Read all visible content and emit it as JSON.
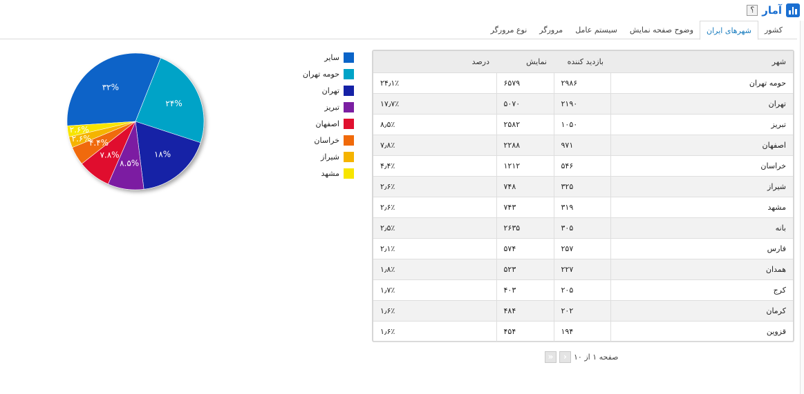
{
  "header": {
    "title": "آمار",
    "help_label": "؟",
    "icon": "bar-chart-icon"
  },
  "tabs": [
    {
      "label": "کشور",
      "active": false
    },
    {
      "label": "شهرهای ایران",
      "active": true
    },
    {
      "label": "وضوح صفحه نمایش",
      "active": false
    },
    {
      "label": "سیستم عامل",
      "active": false
    },
    {
      "label": "مرورگر",
      "active": false
    },
    {
      "label": "نوع مرورگر",
      "active": false
    }
  ],
  "table": {
    "headers": {
      "city": "شهر",
      "visitors": "بازدید کننده",
      "views": "نمایش",
      "percent": "درصد"
    },
    "rows": [
      {
        "city": "حومه تهران",
        "visitors": "۲۹۸۶",
        "views": "۶۵۷۹",
        "percent": "۲۴٫۱٪"
      },
      {
        "city": "تهران",
        "visitors": "۲۱۹۰",
        "views": "۵۰۷۰",
        "percent": "۱۷٫۷٪"
      },
      {
        "city": "تبریز",
        "visitors": "۱۰۵۰",
        "views": "۲۵۸۲",
        "percent": "۸٫۵٪"
      },
      {
        "city": "اصفهان",
        "visitors": "۹۷۱",
        "views": "۲۲۸۸",
        "percent": "۷٫۸٪"
      },
      {
        "city": "خراسان",
        "visitors": "۵۴۶",
        "views": "۱۲۱۲",
        "percent": "۴٫۴٪"
      },
      {
        "city": "شیراز",
        "visitors": "۳۲۵",
        "views": "۷۴۸",
        "percent": "۲٫۶٪"
      },
      {
        "city": "مشهد",
        "visitors": "۳۱۹",
        "views": "۷۴۳",
        "percent": "۲٫۶٪"
      },
      {
        "city": "بانه",
        "visitors": "۳۰۵",
        "views": "۲۶۳۵",
        "percent": "۲٫۵٪"
      },
      {
        "city": "فارس",
        "visitors": "۲۵۷",
        "views": "۵۷۴",
        "percent": "۲٫۱٪"
      },
      {
        "city": "همدان",
        "visitors": "۲۲۷",
        "views": "۵۲۳",
        "percent": "۱٫۸٪"
      },
      {
        "city": "کرج",
        "visitors": "۲۰۵",
        "views": "۴۰۳",
        "percent": "۱٫۷٪"
      },
      {
        "city": "کرمان",
        "visitors": "۲۰۲",
        "views": "۴۸۴",
        "percent": "۱٫۶٪"
      },
      {
        "city": "قزوین",
        "visitors": "۱۹۴",
        "views": "۴۵۴",
        "percent": "۱٫۶٪"
      }
    ]
  },
  "pagination": {
    "text": "صفحه ۱ از ۱۰",
    "next_icon": "chevron-right-icon",
    "last_icon": "double-chevron-right-icon"
  },
  "legend": [
    {
      "label": "سایر",
      "color": "#0a64c8"
    },
    {
      "label": "حومه تهران",
      "color": "#00a3c7"
    },
    {
      "label": "تهران",
      "color": "#1521a6"
    },
    {
      "label": "تبریز",
      "color": "#7b1fa2"
    },
    {
      "label": "اصفهان",
      "color": "#e0102f"
    },
    {
      "label": "خراسان",
      "color": "#f06a0a"
    },
    {
      "label": "شیراز",
      "color": "#f5b400"
    },
    {
      "label": "مشهد",
      "color": "#f7e500"
    }
  ],
  "chart_data": {
    "type": "pie",
    "slices": [
      {
        "name": "سایر",
        "value": 32,
        "label": "۳۲%",
        "color": "#0a64c8"
      },
      {
        "name": "حومه تهران",
        "value": 24,
        "label": "۲۴%",
        "color": "#00a3c7"
      },
      {
        "name": "تهران",
        "value": 18,
        "label": "۱۸%",
        "color": "#1521a6"
      },
      {
        "name": "تبریز",
        "value": 8.5,
        "label": "۸.۵%",
        "color": "#7b1fa2"
      },
      {
        "name": "اصفهان",
        "value": 7.8,
        "label": "۷.۸%",
        "color": "#e0102f"
      },
      {
        "name": "خراسان",
        "value": 4.4,
        "label": "۴.۴%",
        "color": "#f06a0a"
      },
      {
        "name": "شیراز",
        "value": 2.6,
        "label": "۲.۶%",
        "color": "#f5b400"
      },
      {
        "name": "مشهد",
        "value": 2.6,
        "label": "۲.۶%",
        "color": "#f7e500"
      }
    ]
  }
}
